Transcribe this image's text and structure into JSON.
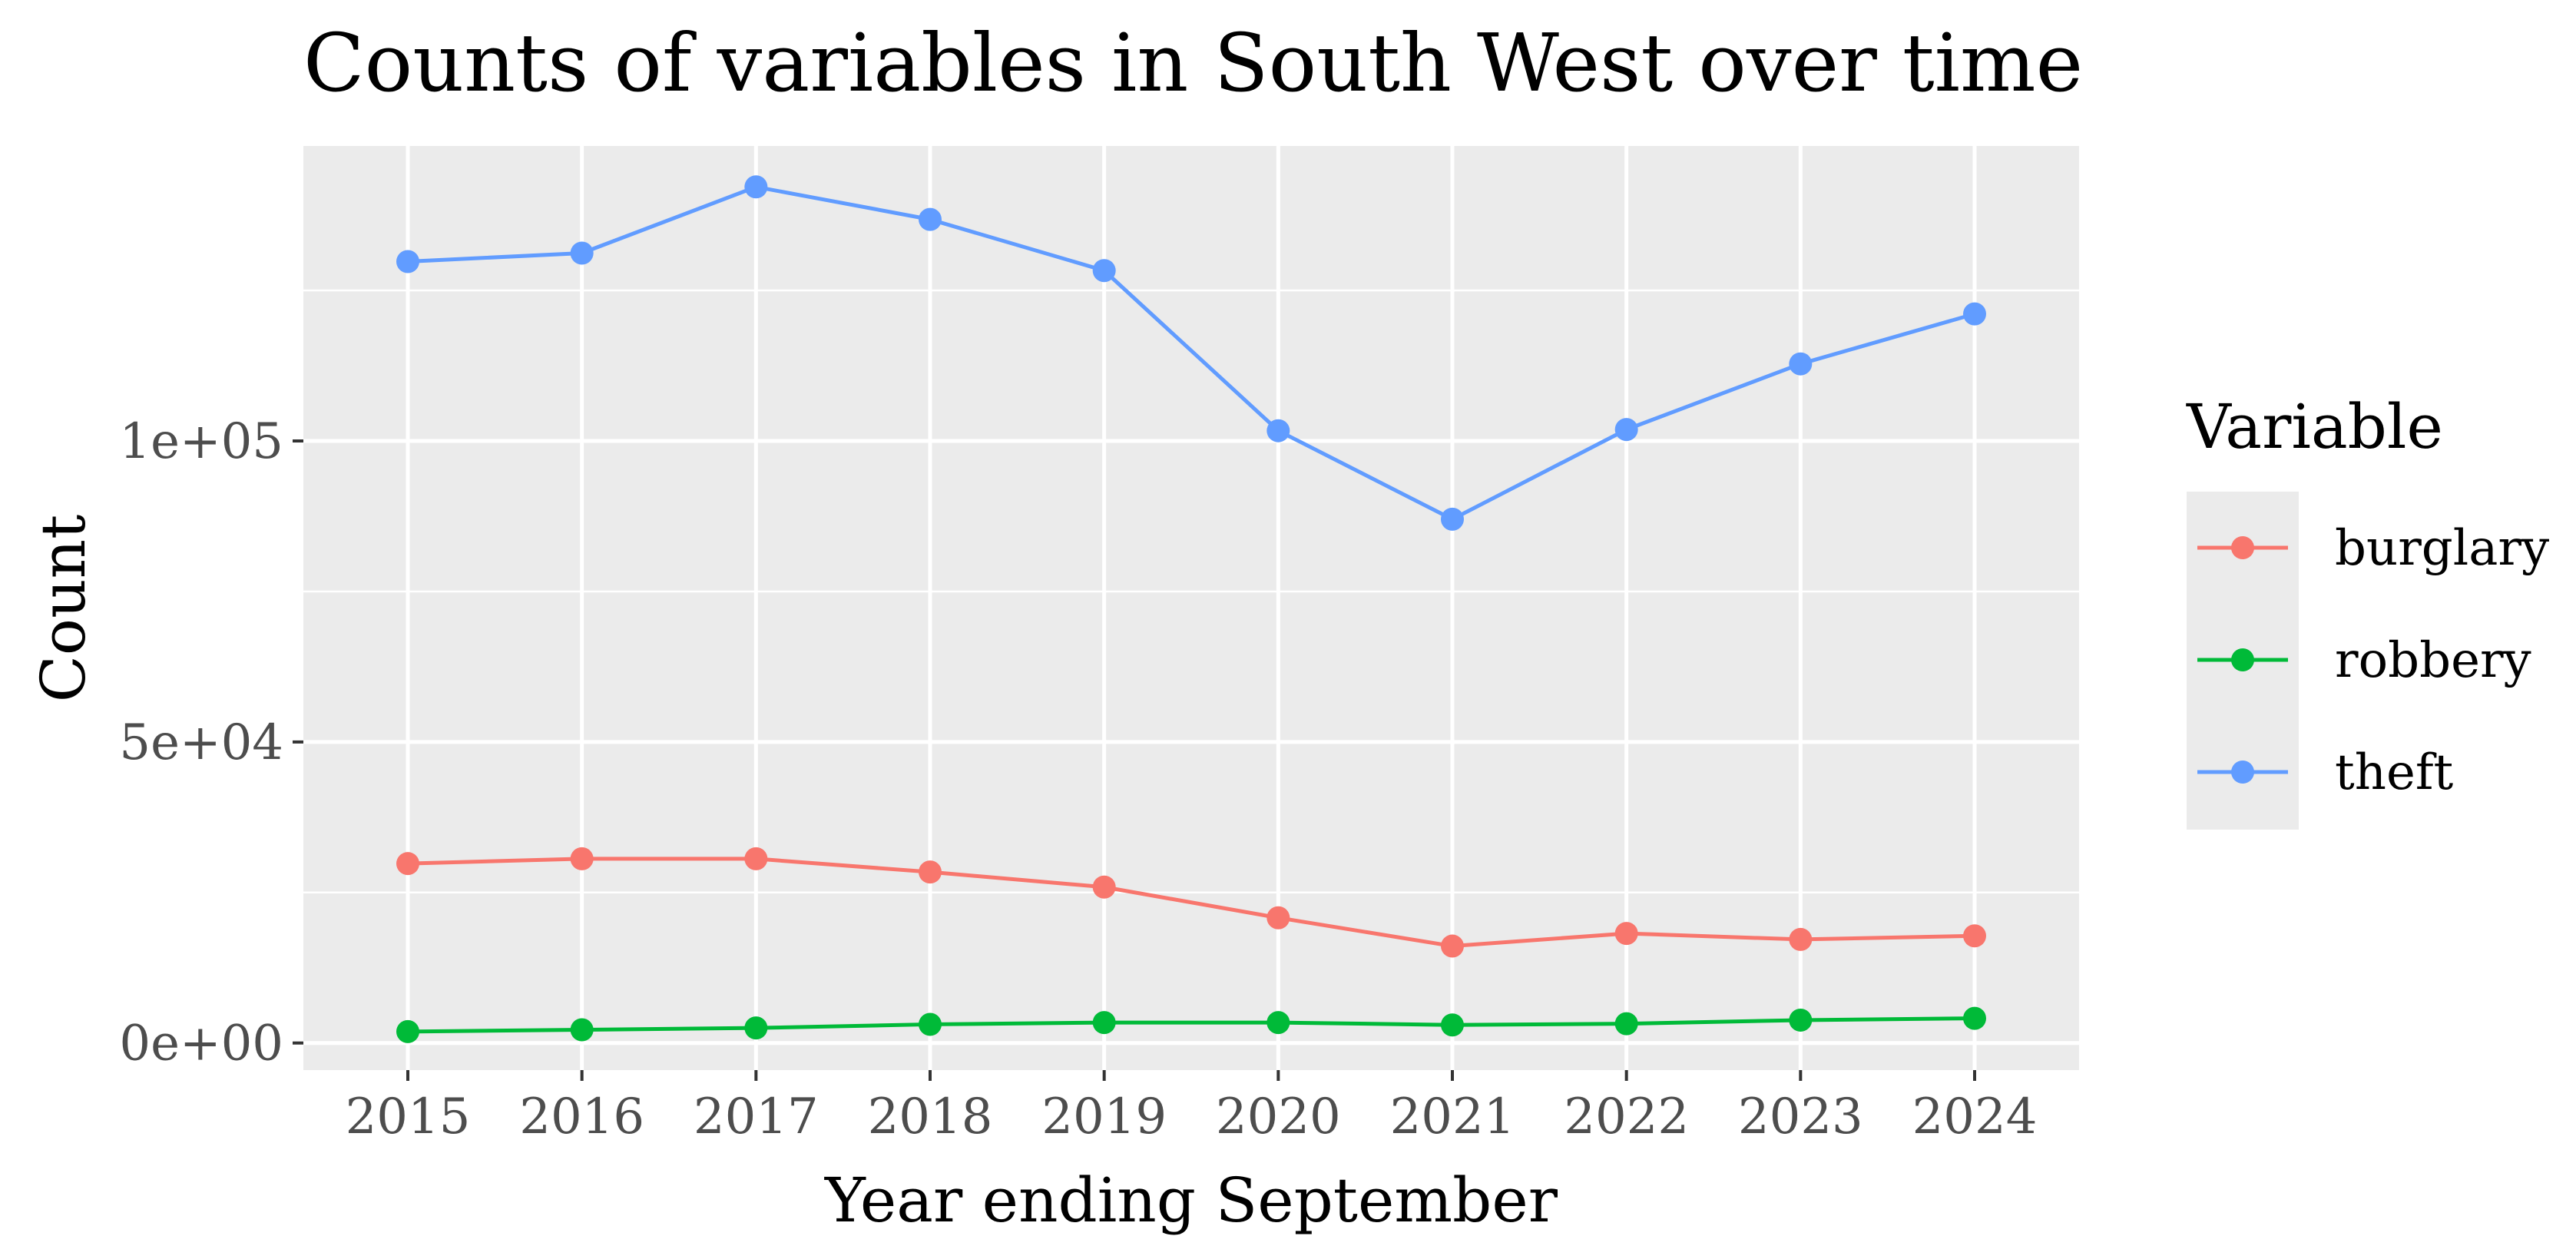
{
  "chart_data": {
    "type": "line",
    "title": "Counts of variables in South West over time",
    "xlabel": "Year ending September",
    "ylabel": "Count",
    "x": [
      "2015",
      "2016",
      "2017",
      "2018",
      "2019",
      "2020",
      "2021",
      "2022",
      "2023",
      "2024"
    ],
    "ylim": [
      -4500,
      149000
    ],
    "yticks": [
      0,
      50000,
      100000
    ],
    "ytick_labels": [
      "0e+00",
      "5e+04",
      "1e+05"
    ],
    "grid": true,
    "legend": {
      "title": "Variable",
      "position": "right"
    },
    "series": [
      {
        "name": "burglary",
        "color": "#F8766D",
        "values": [
          29800,
          30600,
          30600,
          28400,
          25900,
          20800,
          16100,
          18200,
          17200,
          17800
        ]
      },
      {
        "name": "robbery",
        "color": "#00BA38",
        "values": [
          1900,
          2200,
          2500,
          3100,
          3400,
          3400,
          3000,
          3200,
          3800,
          4100
        ]
      },
      {
        "name": "theft",
        "color": "#619CFF",
        "values": [
          129800,
          131200,
          142200,
          136800,
          128300,
          101700,
          87000,
          101900,
          112800,
          121100
        ]
      }
    ]
  }
}
